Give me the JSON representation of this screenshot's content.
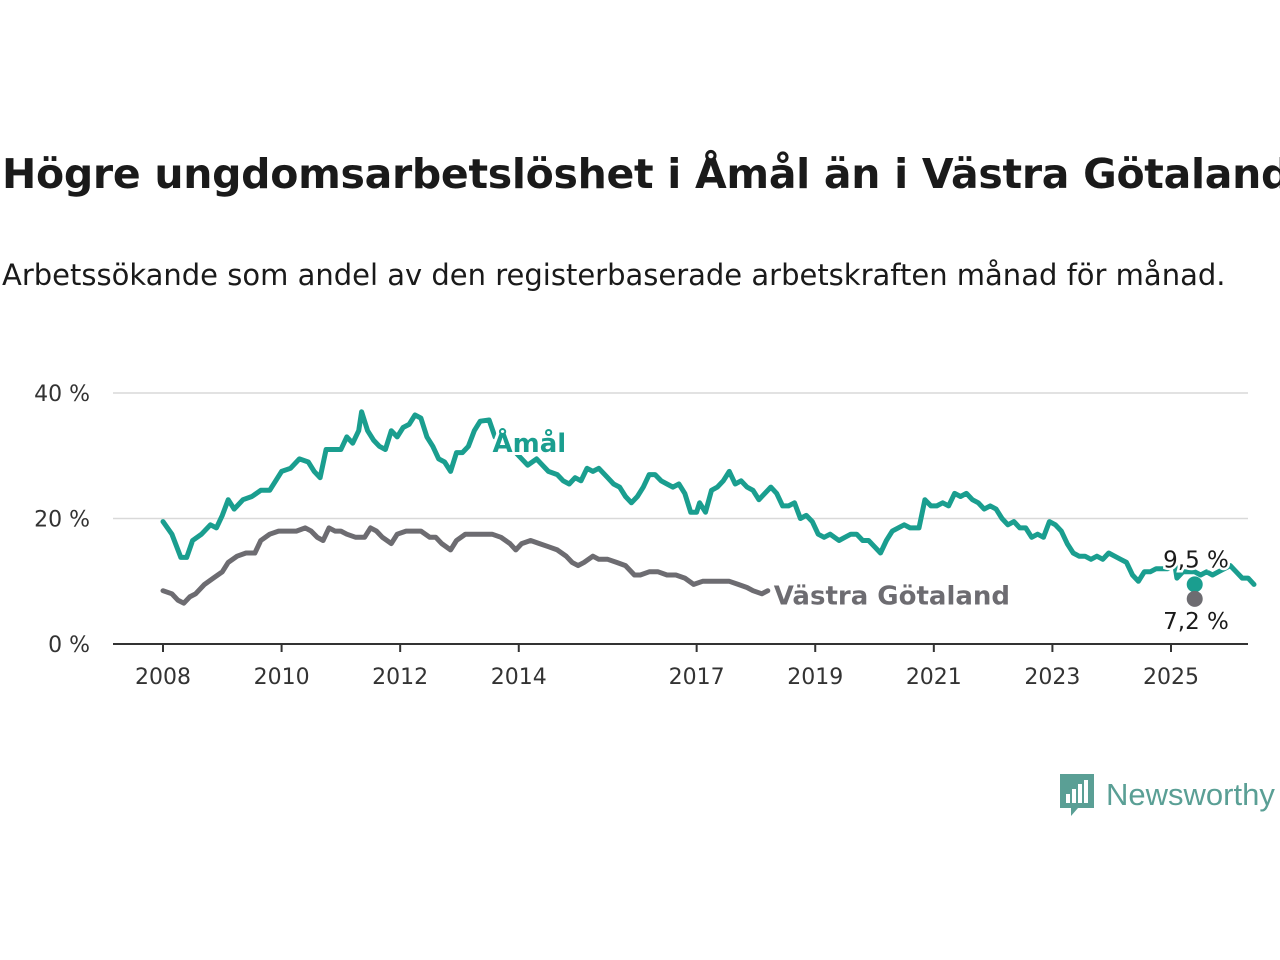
{
  "header": {
    "title": "Högre ungdomsarbetslöshet i Åmål än i Västra Götaland",
    "subtitle": "Arbetssökande som andel av den registerbaserade arbetskraften månad för månad."
  },
  "brand": {
    "name": "Newsworthy",
    "color": "#5a9f95",
    "icon": "newsworthy-logo-icon"
  },
  "chart_data": {
    "type": "line",
    "x_unit": "year",
    "x_ticks": [
      2008,
      2010,
      2012,
      2014,
      2017,
      2019,
      2021,
      2023,
      2025
    ],
    "x_range": [
      2006.8,
      2026.3
    ],
    "y_ticks": [
      {
        "value": 0,
        "label": "0 %"
      },
      {
        "value": 20,
        "label": "20 %"
      },
      {
        "value": 40,
        "label": "40 %"
      }
    ],
    "ylim": [
      0,
      40
    ],
    "grid": true,
    "series": [
      {
        "name": "Åmål",
        "color": "#1a9e8f",
        "end_label": "9,5 %",
        "points": [
          [
            2008.0,
            19.5
          ],
          [
            2008.15,
            17.5
          ],
          [
            2008.3,
            13.8
          ],
          [
            2008.4,
            13.8
          ],
          [
            2008.5,
            16.5
          ],
          [
            2008.65,
            17.5
          ],
          [
            2008.8,
            19.0
          ],
          [
            2008.9,
            18.5
          ],
          [
            2009.0,
            20.5
          ],
          [
            2009.1,
            23.0
          ],
          [
            2009.2,
            21.5
          ],
          [
            2009.35,
            23.0
          ],
          [
            2009.5,
            23.5
          ],
          [
            2009.65,
            24.5
          ],
          [
            2009.8,
            24.5
          ],
          [
            2009.9,
            26.0
          ],
          [
            2010.0,
            27.5
          ],
          [
            2010.15,
            28.0
          ],
          [
            2010.3,
            29.5
          ],
          [
            2010.45,
            29.0
          ],
          [
            2010.55,
            27.5
          ],
          [
            2010.65,
            26.5
          ],
          [
            2010.75,
            31.0
          ],
          [
            2010.9,
            31.0
          ],
          [
            2011.0,
            31.0
          ],
          [
            2011.1,
            33.0
          ],
          [
            2011.2,
            32.0
          ],
          [
            2011.3,
            34.0
          ],
          [
            2011.35,
            37.0
          ],
          [
            2011.45,
            34.0
          ],
          [
            2011.55,
            32.5
          ],
          [
            2011.65,
            31.5
          ],
          [
            2011.75,
            31.0
          ],
          [
            2011.85,
            34.0
          ],
          [
            2011.95,
            33.0
          ],
          [
            2012.05,
            34.5
          ],
          [
            2012.15,
            35.0
          ],
          [
            2012.25,
            36.5
          ],
          [
            2012.35,
            36.0
          ],
          [
            2012.45,
            33.0
          ],
          [
            2012.55,
            31.5
          ],
          [
            2012.65,
            29.5
          ],
          [
            2012.75,
            29.0
          ],
          [
            2012.85,
            27.5
          ],
          [
            2012.95,
            30.5
          ],
          [
            2013.05,
            30.5
          ],
          [
            2013.15,
            31.5
          ],
          [
            2013.25,
            34.0
          ],
          [
            2013.35,
            35.5
          ],
          [
            2013.5,
            35.7
          ],
          [
            2013.6,
            33.0
          ],
          [
            2013.7,
            33.0
          ],
          [
            2014.0,
            30.0
          ],
          [
            2014.15,
            28.5
          ],
          [
            2014.3,
            29.5
          ],
          [
            2014.4,
            28.5
          ],
          [
            2014.5,
            27.5
          ],
          [
            2014.65,
            27.0
          ],
          [
            2014.75,
            26.0
          ],
          [
            2014.85,
            25.5
          ],
          [
            2014.95,
            26.5
          ],
          [
            2015.05,
            26.0
          ],
          [
            2015.15,
            28.0
          ],
          [
            2015.25,
            27.5
          ],
          [
            2015.35,
            28.0
          ],
          [
            2015.5,
            26.5
          ],
          [
            2015.6,
            25.5
          ],
          [
            2015.7,
            25.0
          ],
          [
            2015.8,
            23.5
          ],
          [
            2015.9,
            22.5
          ],
          [
            2016.0,
            23.5
          ],
          [
            2016.1,
            25.0
          ],
          [
            2016.2,
            27.0
          ],
          [
            2016.3,
            27.0
          ],
          [
            2016.4,
            26.0
          ],
          [
            2016.5,
            25.5
          ],
          [
            2016.6,
            25.0
          ],
          [
            2016.7,
            25.5
          ],
          [
            2016.8,
            24.0
          ],
          [
            2016.9,
            21.0
          ],
          [
            2017.0,
            21.0
          ],
          [
            2017.05,
            22.5
          ],
          [
            2017.15,
            21.0
          ],
          [
            2017.25,
            24.5
          ],
          [
            2017.35,
            25.0
          ],
          [
            2017.45,
            26.0
          ],
          [
            2017.55,
            27.5
          ],
          [
            2017.65,
            25.5
          ],
          [
            2017.75,
            26.0
          ],
          [
            2017.85,
            25.0
          ],
          [
            2017.95,
            24.5
          ],
          [
            2018.05,
            23.0
          ],
          [
            2018.15,
            24.0
          ],
          [
            2018.25,
            25.0
          ],
          [
            2018.35,
            24.0
          ],
          [
            2018.45,
            22.0
          ],
          [
            2018.55,
            22.0
          ],
          [
            2018.65,
            22.5
          ],
          [
            2018.75,
            20.0
          ],
          [
            2018.85,
            20.5
          ],
          [
            2018.95,
            19.5
          ],
          [
            2019.05,
            17.5
          ],
          [
            2019.15,
            17.0
          ],
          [
            2019.25,
            17.5
          ],
          [
            2019.4,
            16.5
          ],
          [
            2019.5,
            17.0
          ],
          [
            2019.6,
            17.5
          ],
          [
            2019.7,
            17.5
          ],
          [
            2019.8,
            16.5
          ],
          [
            2019.9,
            16.5
          ],
          [
            2020.0,
            15.5
          ],
          [
            2020.1,
            14.5
          ],
          [
            2020.2,
            16.5
          ],
          [
            2020.3,
            18.0
          ],
          [
            2020.4,
            18.5
          ],
          [
            2020.5,
            19.0
          ],
          [
            2020.6,
            18.5
          ],
          [
            2020.75,
            18.5
          ],
          [
            2020.85,
            23.0
          ],
          [
            2020.95,
            22.0
          ],
          [
            2021.05,
            22.0
          ],
          [
            2021.15,
            22.5
          ],
          [
            2021.25,
            22.0
          ],
          [
            2021.35,
            24.0
          ],
          [
            2021.45,
            23.5
          ],
          [
            2021.55,
            24.0
          ],
          [
            2021.65,
            23.0
          ],
          [
            2021.75,
            22.5
          ],
          [
            2021.85,
            21.5
          ],
          [
            2021.95,
            22.0
          ],
          [
            2022.05,
            21.5
          ],
          [
            2022.15,
            20.0
          ],
          [
            2022.25,
            19.0
          ],
          [
            2022.35,
            19.5
          ],
          [
            2022.45,
            18.5
          ],
          [
            2022.55,
            18.5
          ],
          [
            2022.65,
            17.0
          ],
          [
            2022.75,
            17.5
          ],
          [
            2022.85,
            17.0
          ],
          [
            2022.95,
            19.5
          ],
          [
            2023.05,
            19.0
          ],
          [
            2023.15,
            18.0
          ],
          [
            2023.25,
            16.0
          ],
          [
            2023.35,
            14.5
          ],
          [
            2023.45,
            14.0
          ],
          [
            2023.55,
            14.0
          ],
          [
            2023.65,
            13.5
          ],
          [
            2023.75,
            14.0
          ],
          [
            2023.85,
            13.5
          ],
          [
            2023.95,
            14.5
          ],
          [
            2024.05,
            14.0
          ],
          [
            2024.15,
            13.5
          ],
          [
            2024.25,
            13.0
          ],
          [
            2024.35,
            11.0
          ],
          [
            2024.45,
            10.0
          ],
          [
            2024.55,
            11.5
          ],
          [
            2024.65,
            11.5
          ],
          [
            2024.75,
            12.0
          ],
          [
            2024.85,
            12.0
          ],
          [
            2024.95,
            12.0
          ],
          [
            2025.05,
            13.5
          ],
          [
            2025.1,
            10.5
          ],
          [
            2025.2,
            11.5
          ],
          [
            2025.3,
            11.5
          ],
          [
            2025.4,
            11.5
          ],
          [
            2025.5,
            11.0
          ],
          [
            2025.6,
            11.5
          ],
          [
            2025.7,
            11.0
          ],
          [
            2025.8,
            11.5
          ],
          [
            2025.9,
            12.0
          ],
          [
            2026.0,
            12.5
          ],
          [
            2026.1,
            11.5
          ],
          [
            2026.2,
            10.5
          ],
          [
            2026.3,
            10.5
          ],
          [
            2026.4,
            9.5
          ]
        ]
      },
      {
        "name": "Västra Götaland",
        "color": "#6d6c71",
        "end_label": "7,2 %",
        "points": [
          [
            2008.0,
            8.5
          ],
          [
            2008.15,
            8.0
          ],
          [
            2008.25,
            7.0
          ],
          [
            2008.35,
            6.5
          ],
          [
            2008.45,
            7.5
          ],
          [
            2008.55,
            8.0
          ],
          [
            2008.7,
            9.5
          ],
          [
            2008.85,
            10.5
          ],
          [
            2009.0,
            11.5
          ],
          [
            2009.1,
            13.0
          ],
          [
            2009.25,
            14.0
          ],
          [
            2009.4,
            14.5
          ],
          [
            2009.55,
            14.5
          ],
          [
            2009.65,
            16.5
          ],
          [
            2009.8,
            17.5
          ],
          [
            2009.95,
            18.0
          ],
          [
            2010.1,
            18.0
          ],
          [
            2010.25,
            18.0
          ],
          [
            2010.4,
            18.5
          ],
          [
            2010.5,
            18.0
          ],
          [
            2010.6,
            17.0
          ],
          [
            2010.7,
            16.5
          ],
          [
            2010.8,
            18.5
          ],
          [
            2010.9,
            18.0
          ],
          [
            2011.0,
            18.0
          ],
          [
            2011.1,
            17.5
          ],
          [
            2011.25,
            17.0
          ],
          [
            2011.4,
            17.0
          ],
          [
            2011.5,
            18.5
          ],
          [
            2011.6,
            18.0
          ],
          [
            2011.7,
            17.0
          ],
          [
            2011.85,
            16.0
          ],
          [
            2011.95,
            17.5
          ],
          [
            2012.1,
            18.0
          ],
          [
            2012.25,
            18.0
          ],
          [
            2012.35,
            18.0
          ],
          [
            2012.5,
            17.0
          ],
          [
            2012.6,
            17.0
          ],
          [
            2012.7,
            16.0
          ],
          [
            2012.85,
            15.0
          ],
          [
            2012.95,
            16.5
          ],
          [
            2013.1,
            17.5
          ],
          [
            2013.25,
            17.5
          ],
          [
            2013.35,
            17.5
          ],
          [
            2013.45,
            17.5
          ],
          [
            2013.55,
            17.5
          ],
          [
            2013.7,
            17.0
          ],
          [
            2013.85,
            16.0
          ],
          [
            2013.95,
            15.0
          ],
          [
            2014.05,
            16.0
          ],
          [
            2014.2,
            16.5
          ],
          [
            2014.35,
            16.0
          ],
          [
            2014.5,
            15.5
          ],
          [
            2014.65,
            15.0
          ],
          [
            2014.8,
            14.0
          ],
          [
            2014.9,
            13.0
          ],
          [
            2015.0,
            12.5
          ],
          [
            2015.1,
            13.0
          ],
          [
            2015.25,
            14.0
          ],
          [
            2015.35,
            13.5
          ],
          [
            2015.5,
            13.5
          ],
          [
            2015.65,
            13.0
          ],
          [
            2015.8,
            12.5
          ],
          [
            2015.95,
            11.0
          ],
          [
            2016.05,
            11.0
          ],
          [
            2016.2,
            11.5
          ],
          [
            2016.35,
            11.5
          ],
          [
            2016.5,
            11.0
          ],
          [
            2016.65,
            11.0
          ],
          [
            2016.8,
            10.5
          ],
          [
            2016.95,
            9.5
          ],
          [
            2017.1,
            10.0
          ],
          [
            2017.25,
            10.0
          ],
          [
            2017.4,
            10.0
          ],
          [
            2017.55,
            10.0
          ],
          [
            2017.7,
            9.5
          ],
          [
            2017.85,
            9.0
          ],
          [
            2017.95,
            8.5
          ],
          [
            2018.1,
            8.0
          ],
          [
            2018.2,
            8.5
          ]
        ]
      }
    ],
    "series_labels": [
      {
        "series": "Åmål"
      },
      {
        "series": "Västra Götaland"
      }
    ]
  }
}
